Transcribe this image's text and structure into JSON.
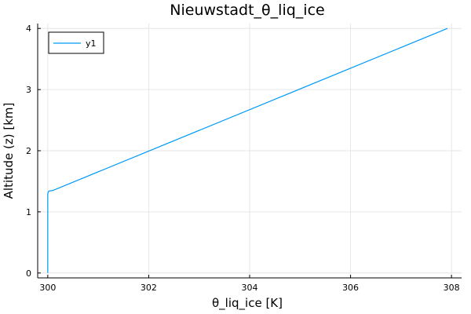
{
  "chart_data": {
    "type": "line",
    "title": "Nieuwstadt_θ_liq_ice",
    "xlabel": "θ_liq_ice [K]",
    "ylabel": "Altitude (z) [km]",
    "xlim": [
      299.8,
      308.2
    ],
    "ylim": [
      -0.08,
      4.08
    ],
    "xticks": [
      300,
      302,
      304,
      306,
      308
    ],
    "yticks": [
      0,
      1,
      2,
      3,
      4
    ],
    "grid": true,
    "legend": "top-left",
    "series": [
      {
        "name": "y1",
        "color": "#009AFA",
        "x": [
          300.0,
          300.0,
          300.0,
          300.02,
          300.1,
          307.92
        ],
        "y": [
          0.0,
          0.5,
          1.3,
          1.34,
          1.35,
          4.0
        ]
      }
    ]
  }
}
